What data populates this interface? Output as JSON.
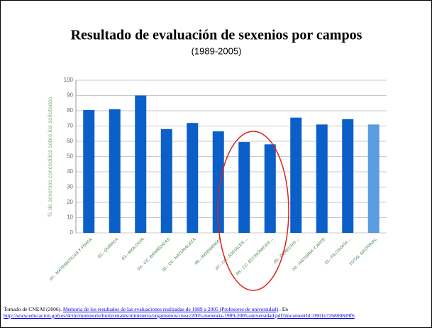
{
  "chart_data": {
    "type": "bar",
    "title": "Resultado de evaluación de sexenios por campos",
    "subtitle": "(1989-2005)",
    "y_label": "% de sexenios concedidos sobre los solicitados",
    "categories": [
      "01.- MATEMÁTICAS Y FÍSICA",
      "02.- QUÍMICA",
      "03.- BIOLOGÍA",
      "04.- CC. BIOMÉDICAS",
      "05.- CC. NATURALEZA",
      "06.- INGENIERÍAS",
      "07.- CC. SOCIALES ...",
      "08.- CC. ECONÓMICAS ...",
      "09.- DERECHO ...",
      "10.- HISTORIA Y ARTE",
      "11.- FILOSOFÍA ...",
      "TOTAL NACIONAL"
    ],
    "values": [
      80.5,
      81,
      90,
      68,
      72,
      66.5,
      59.5,
      58,
      75.5,
      71,
      74.5,
      71
    ],
    "colors": [
      "#0a5fc8",
      "#0a5fc8",
      "#0a5fc8",
      "#0a5fc8",
      "#0a5fc8",
      "#0a5fc8",
      "#0a5fc8",
      "#0a5fc8",
      "#0a5fc8",
      "#0a5fc8",
      "#0a5fc8",
      "#5b9be0"
    ],
    "ylim": [
      0,
      100
    ],
    "yticks": [
      0,
      10,
      20,
      30,
      40,
      50,
      60,
      70,
      80,
      90,
      100
    ],
    "grid": true
  },
  "source": {
    "prefix": "Tomado de CNEAI (2006).",
    "link_text": "Memoria de los resultados de las evaluaciones realizadas de 1989 a 2005 (Profesores de universidad)",
    "separator": ". En",
    "url": "http://www.educacion.gob.es/dctm/ministerio/horizontales/ministerio/organismos/cneai/2005-memoria-1989-2005-universidad.pdf?documentId=0901e72b8008d9f6"
  }
}
